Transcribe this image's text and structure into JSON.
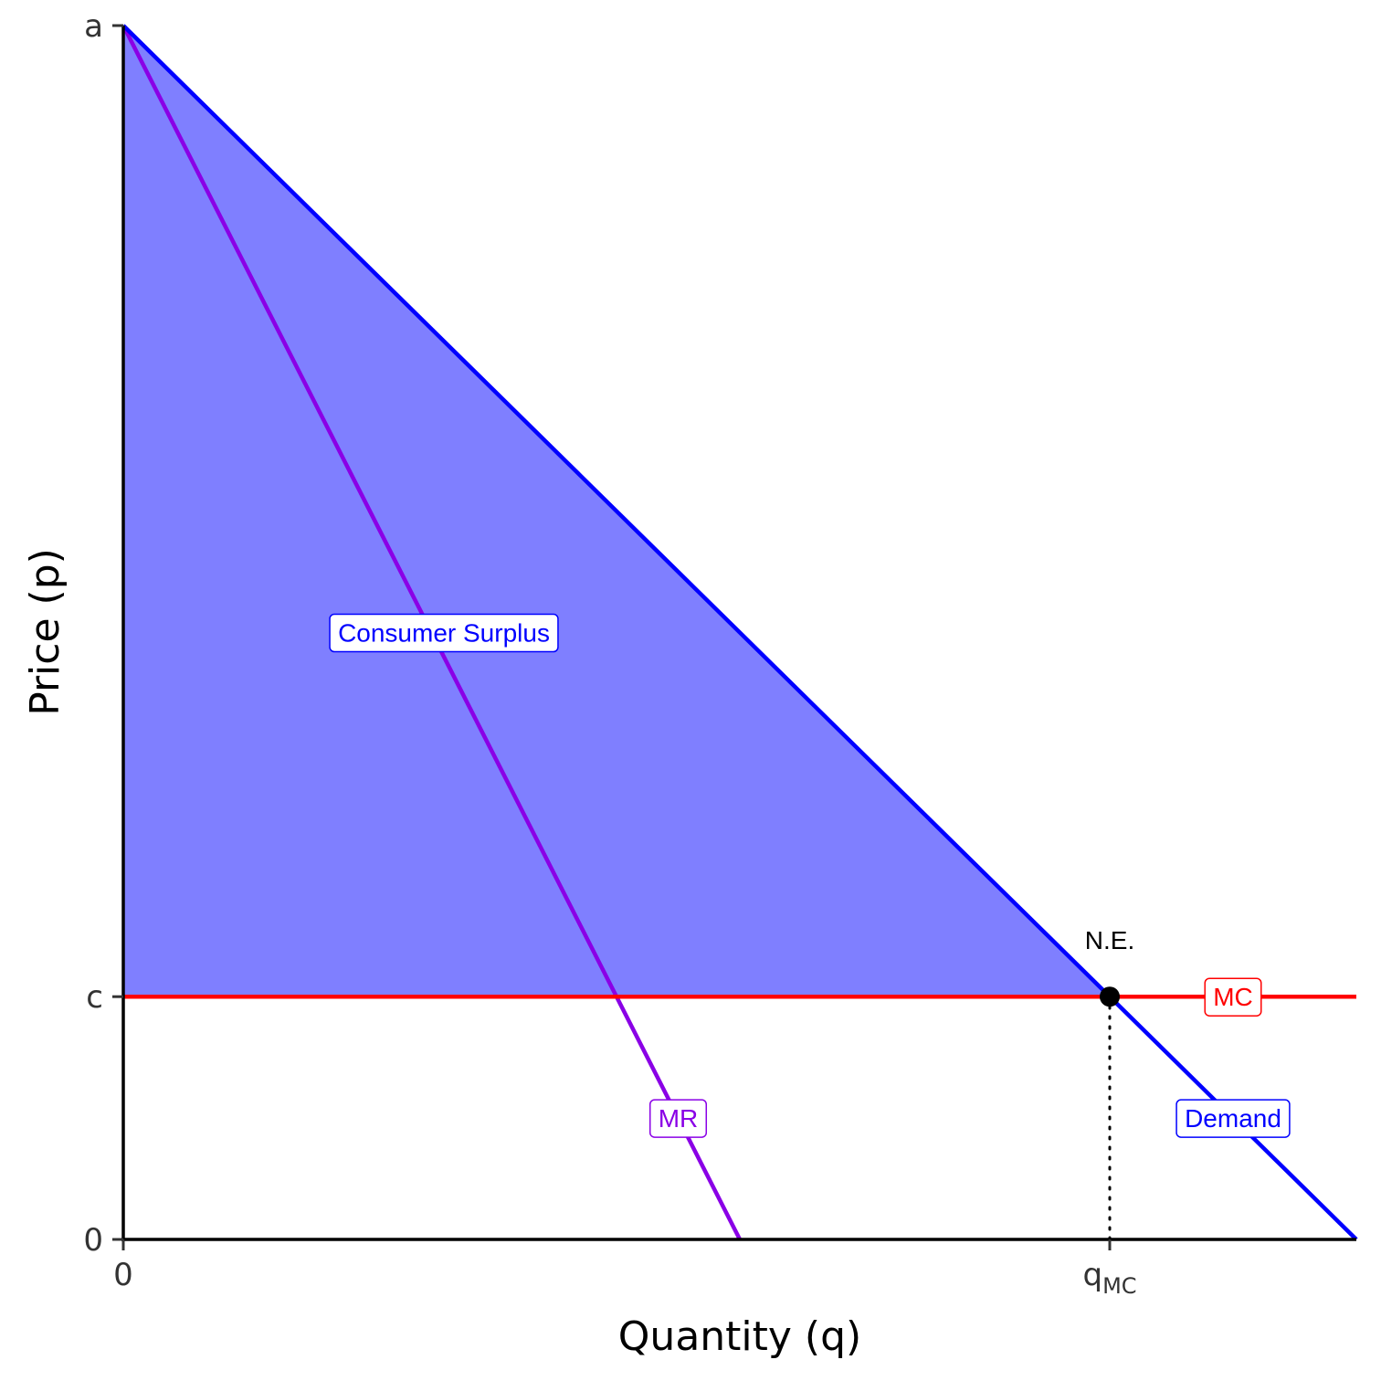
{
  "chart_data": {
    "type": "line",
    "title": "",
    "xlabel": "Quantity (q)",
    "ylabel": "Price (p)",
    "xlim": [
      0,
      1
    ],
    "ylim": [
      0,
      1
    ],
    "grid": false,
    "legend": "none",
    "x_ticks": [
      {
        "value": 0,
        "label": "0"
      },
      {
        "value": 0.8,
        "label": "q",
        "sub": "MC"
      }
    ],
    "y_ticks": [
      {
        "value": 0,
        "label": "0"
      },
      {
        "value": 0.2,
        "label": "c"
      },
      {
        "value": 1,
        "label": "a"
      }
    ],
    "series": [
      {
        "name": "Demand",
        "color": "#0000ff",
        "points": [
          [
            0,
            1
          ],
          [
            1,
            0
          ]
        ]
      },
      {
        "name": "MR",
        "color": "#8a00e6",
        "points": [
          [
            0,
            1
          ],
          [
            0.5,
            0
          ]
        ]
      },
      {
        "name": "MC",
        "color": "#ff0000",
        "points": [
          [
            0,
            0.2
          ],
          [
            1,
            0.2
          ]
        ]
      }
    ],
    "shaded_region": {
      "name": "Consumer Surplus",
      "color": "#0000ff",
      "opacity": 0.5,
      "points": [
        [
          0,
          1
        ],
        [
          0,
          0.2
        ],
        [
          0.8,
          0.2
        ]
      ]
    },
    "equilibrium": {
      "label": "N.E.",
      "x": 0.8,
      "y": 0.2
    },
    "reference_lines": [
      {
        "type": "vertical",
        "x": 0.8,
        "from_y": 0,
        "to_y": 0.2,
        "style": "dotted"
      }
    ],
    "annotations": [
      {
        "text": "Consumer Surplus",
        "x": 0.26,
        "y": 0.5,
        "color": "#0000ff"
      },
      {
        "text": "MR",
        "x": 0.45,
        "y": 0.1,
        "color": "#8a00e6"
      },
      {
        "text": "MC",
        "x": 0.9,
        "y": 0.2,
        "color": "#ff0000"
      },
      {
        "text": "Demand",
        "x": 0.9,
        "y": 0.1,
        "color": "#0000ff"
      }
    ]
  }
}
